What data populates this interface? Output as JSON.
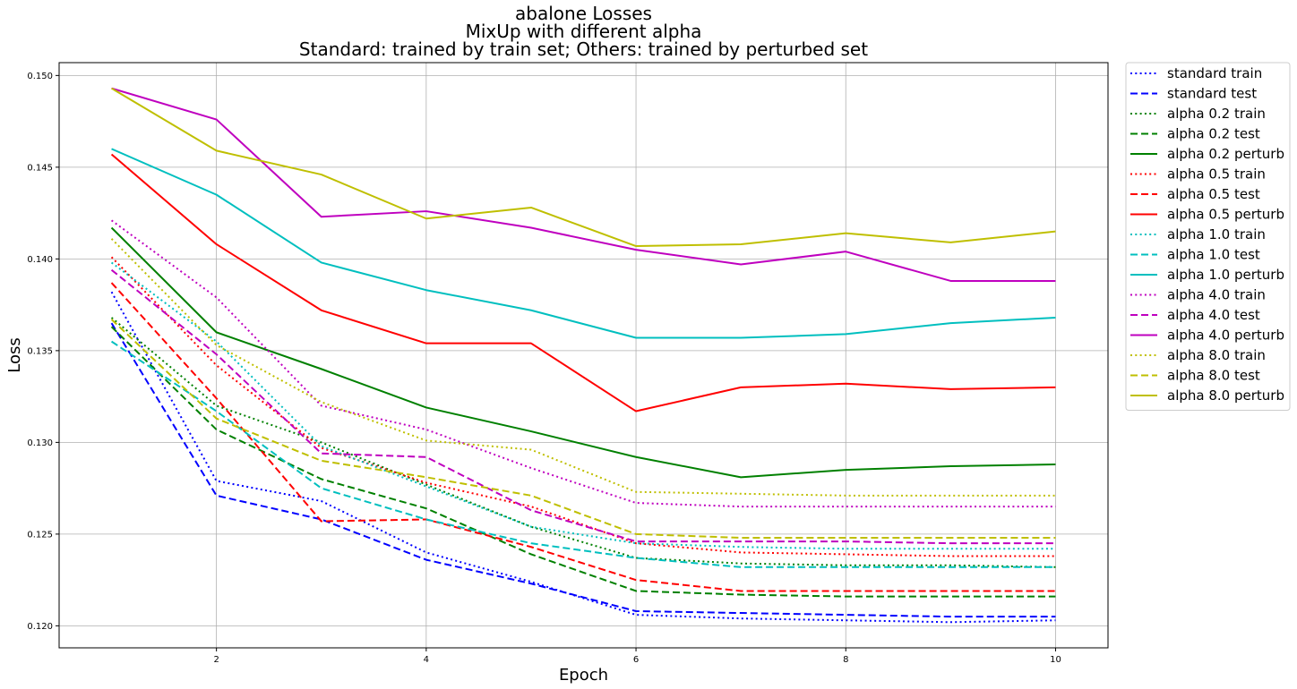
{
  "chart_data": {
    "type": "line",
    "title": [
      "abalone Losses",
      "MixUp with different alpha",
      "Standard: trained by train set; Others: trained by perturbed set"
    ],
    "xlabel": "Epoch",
    "ylabel": "Loss",
    "xlim": [
      0.5,
      10.5
    ],
    "ylim": [
      0.1188,
      0.1507
    ],
    "xticks": [
      2,
      4,
      6,
      8,
      10
    ],
    "xtick_labels": [
      "2",
      "4",
      "6",
      "8",
      "10"
    ],
    "yticks": [
      0.12,
      0.125,
      0.13,
      0.135,
      0.14,
      0.145,
      0.15
    ],
    "ytick_labels": [
      "0.120",
      "0.125",
      "0.130",
      "0.135",
      "0.140",
      "0.145",
      "0.150"
    ],
    "grid": true,
    "legend_position": "outside-right",
    "x": [
      1,
      2,
      3,
      4,
      5,
      6,
      7,
      8,
      9,
      10
    ],
    "series": [
      {
        "name": "standard train",
        "color": "#0000ff",
        "style": "dotted",
        "values": [
          0.1382,
          0.1279,
          0.1268,
          0.124,
          0.1224,
          0.1206,
          0.1204,
          0.1203,
          0.1202,
          0.1203
        ]
      },
      {
        "name": "standard test",
        "color": "#0000ff",
        "style": "dashed",
        "values": [
          0.1365,
          0.1271,
          0.1258,
          0.1236,
          0.1223,
          0.1208,
          0.1207,
          0.1206,
          0.1205,
          0.1205
        ]
      },
      {
        "name": "alpha 0.2 train",
        "color": "#008000",
        "style": "dotted",
        "values": [
          0.1368,
          0.132,
          0.13,
          0.1277,
          0.1254,
          0.1237,
          0.1234,
          0.1233,
          0.1233,
          0.1232
        ]
      },
      {
        "name": "alpha 0.2 test",
        "color": "#008000",
        "style": "dashed",
        "values": [
          0.1363,
          0.1307,
          0.128,
          0.1264,
          0.1239,
          0.1219,
          0.1217,
          0.1216,
          0.1216,
          0.1216
        ]
      },
      {
        "name": "alpha 0.2 perturb",
        "color": "#008000",
        "style": "solid",
        "values": [
          0.1417,
          0.136,
          0.134,
          0.1319,
          0.1306,
          0.1292,
          0.1281,
          0.1285,
          0.1287,
          0.1288
        ]
      },
      {
        "name": "alpha 0.5 train",
        "color": "#ff0000",
        "style": "dotted",
        "values": [
          0.1401,
          0.1342,
          0.1297,
          0.1278,
          0.1265,
          0.1245,
          0.124,
          0.1239,
          0.1238,
          0.1238
        ]
      },
      {
        "name": "alpha 0.5 test",
        "color": "#ff0000",
        "style": "dashed",
        "values": [
          0.1387,
          0.1324,
          0.1257,
          0.1258,
          0.1243,
          0.1225,
          0.1219,
          0.1219,
          0.1219,
          0.1219
        ]
      },
      {
        "name": "alpha 0.5 perturb",
        "color": "#ff0000",
        "style": "solid",
        "values": [
          0.1457,
          0.1408,
          0.1372,
          0.1354,
          0.1354,
          0.1317,
          0.133,
          0.1332,
          0.1329,
          0.133
        ]
      },
      {
        "name": "alpha 1.0 train",
        "color": "#00bfbf",
        "style": "dotted",
        "values": [
          0.1398,
          0.1355,
          0.1298,
          0.1276,
          0.1254,
          0.1245,
          0.1243,
          0.1242,
          0.1242,
          0.1242
        ]
      },
      {
        "name": "alpha 1.0 test",
        "color": "#00bfbf",
        "style": "dashed",
        "values": [
          0.1355,
          0.1317,
          0.1275,
          0.1258,
          0.1245,
          0.1237,
          0.1232,
          0.1232,
          0.1232,
          0.1232
        ]
      },
      {
        "name": "alpha 1.0 perturb",
        "color": "#00bfbf",
        "style": "solid",
        "values": [
          0.146,
          0.1435,
          0.1398,
          0.1383,
          0.1372,
          0.1357,
          0.1357,
          0.1359,
          0.1365,
          0.1368
        ]
      },
      {
        "name": "alpha 4.0 train",
        "color": "#bf00bf",
        "style": "dotted",
        "values": [
          0.1421,
          0.1379,
          0.132,
          0.1307,
          0.1286,
          0.1267,
          0.1265,
          0.1265,
          0.1265,
          0.1265
        ]
      },
      {
        "name": "alpha 4.0 test",
        "color": "#bf00bf",
        "style": "dashed",
        "values": [
          0.1394,
          0.1348,
          0.1294,
          0.1292,
          0.1263,
          0.1246,
          0.1246,
          0.1246,
          0.1245,
          0.1245
        ]
      },
      {
        "name": "alpha 4.0 perturb",
        "color": "#bf00bf",
        "style": "solid",
        "values": [
          0.1493,
          0.1476,
          0.1423,
          0.1426,
          0.1417,
          0.1405,
          0.1397,
          0.1404,
          0.1388,
          0.1388
        ]
      },
      {
        "name": "alpha 8.0 train",
        "color": "#bfbf00",
        "style": "dotted",
        "values": [
          0.1411,
          0.1353,
          0.1322,
          0.1301,
          0.1296,
          0.1273,
          0.1272,
          0.1271,
          0.1271,
          0.1271
        ]
      },
      {
        "name": "alpha 8.0 test",
        "color": "#bfbf00",
        "style": "dashed",
        "values": [
          0.1367,
          0.1313,
          0.129,
          0.1281,
          0.1271,
          0.125,
          0.1248,
          0.1248,
          0.1248,
          0.1248
        ]
      },
      {
        "name": "alpha 8.0 perturb",
        "color": "#bfbf00",
        "style": "solid",
        "values": [
          0.1493,
          0.1459,
          0.1446,
          0.1422,
          0.1428,
          0.1407,
          0.1408,
          0.1414,
          0.1409,
          0.1415
        ]
      }
    ]
  }
}
